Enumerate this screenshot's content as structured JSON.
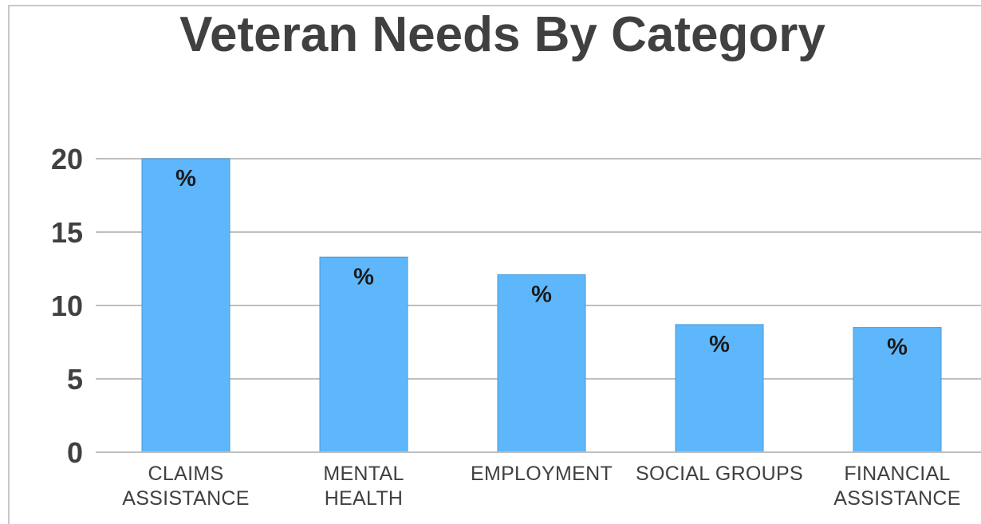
{
  "chart_data": {
    "type": "bar",
    "title": "Veteran Needs By Category",
    "categories": [
      [
        "CLAIMS",
        "ASSISTANCE"
      ],
      [
        "MENTAL",
        "HEALTH"
      ],
      [
        "EMPLOYMENT"
      ],
      [
        "SOCIAL GROUPS"
      ],
      [
        "FINANCIAL",
        "ASSISTANCE"
      ]
    ],
    "values": [
      20,
      13.3,
      12.1,
      8.7,
      8.5
    ],
    "data_labels": [
      "%",
      "%",
      "%",
      "%",
      "%"
    ],
    "ylim": [
      0,
      20
    ],
    "yticks": [
      "0",
      "5",
      "10",
      "15",
      "20"
    ],
    "ytick_values": [
      0,
      5,
      10,
      15,
      20
    ],
    "grid": true,
    "xlabel": "",
    "ylabel": "",
    "colors": {
      "bar": "#5eb7fb",
      "bar_edge": "#4a9ad6",
      "grid": "#bfbfbf",
      "text": "#404040"
    }
  }
}
